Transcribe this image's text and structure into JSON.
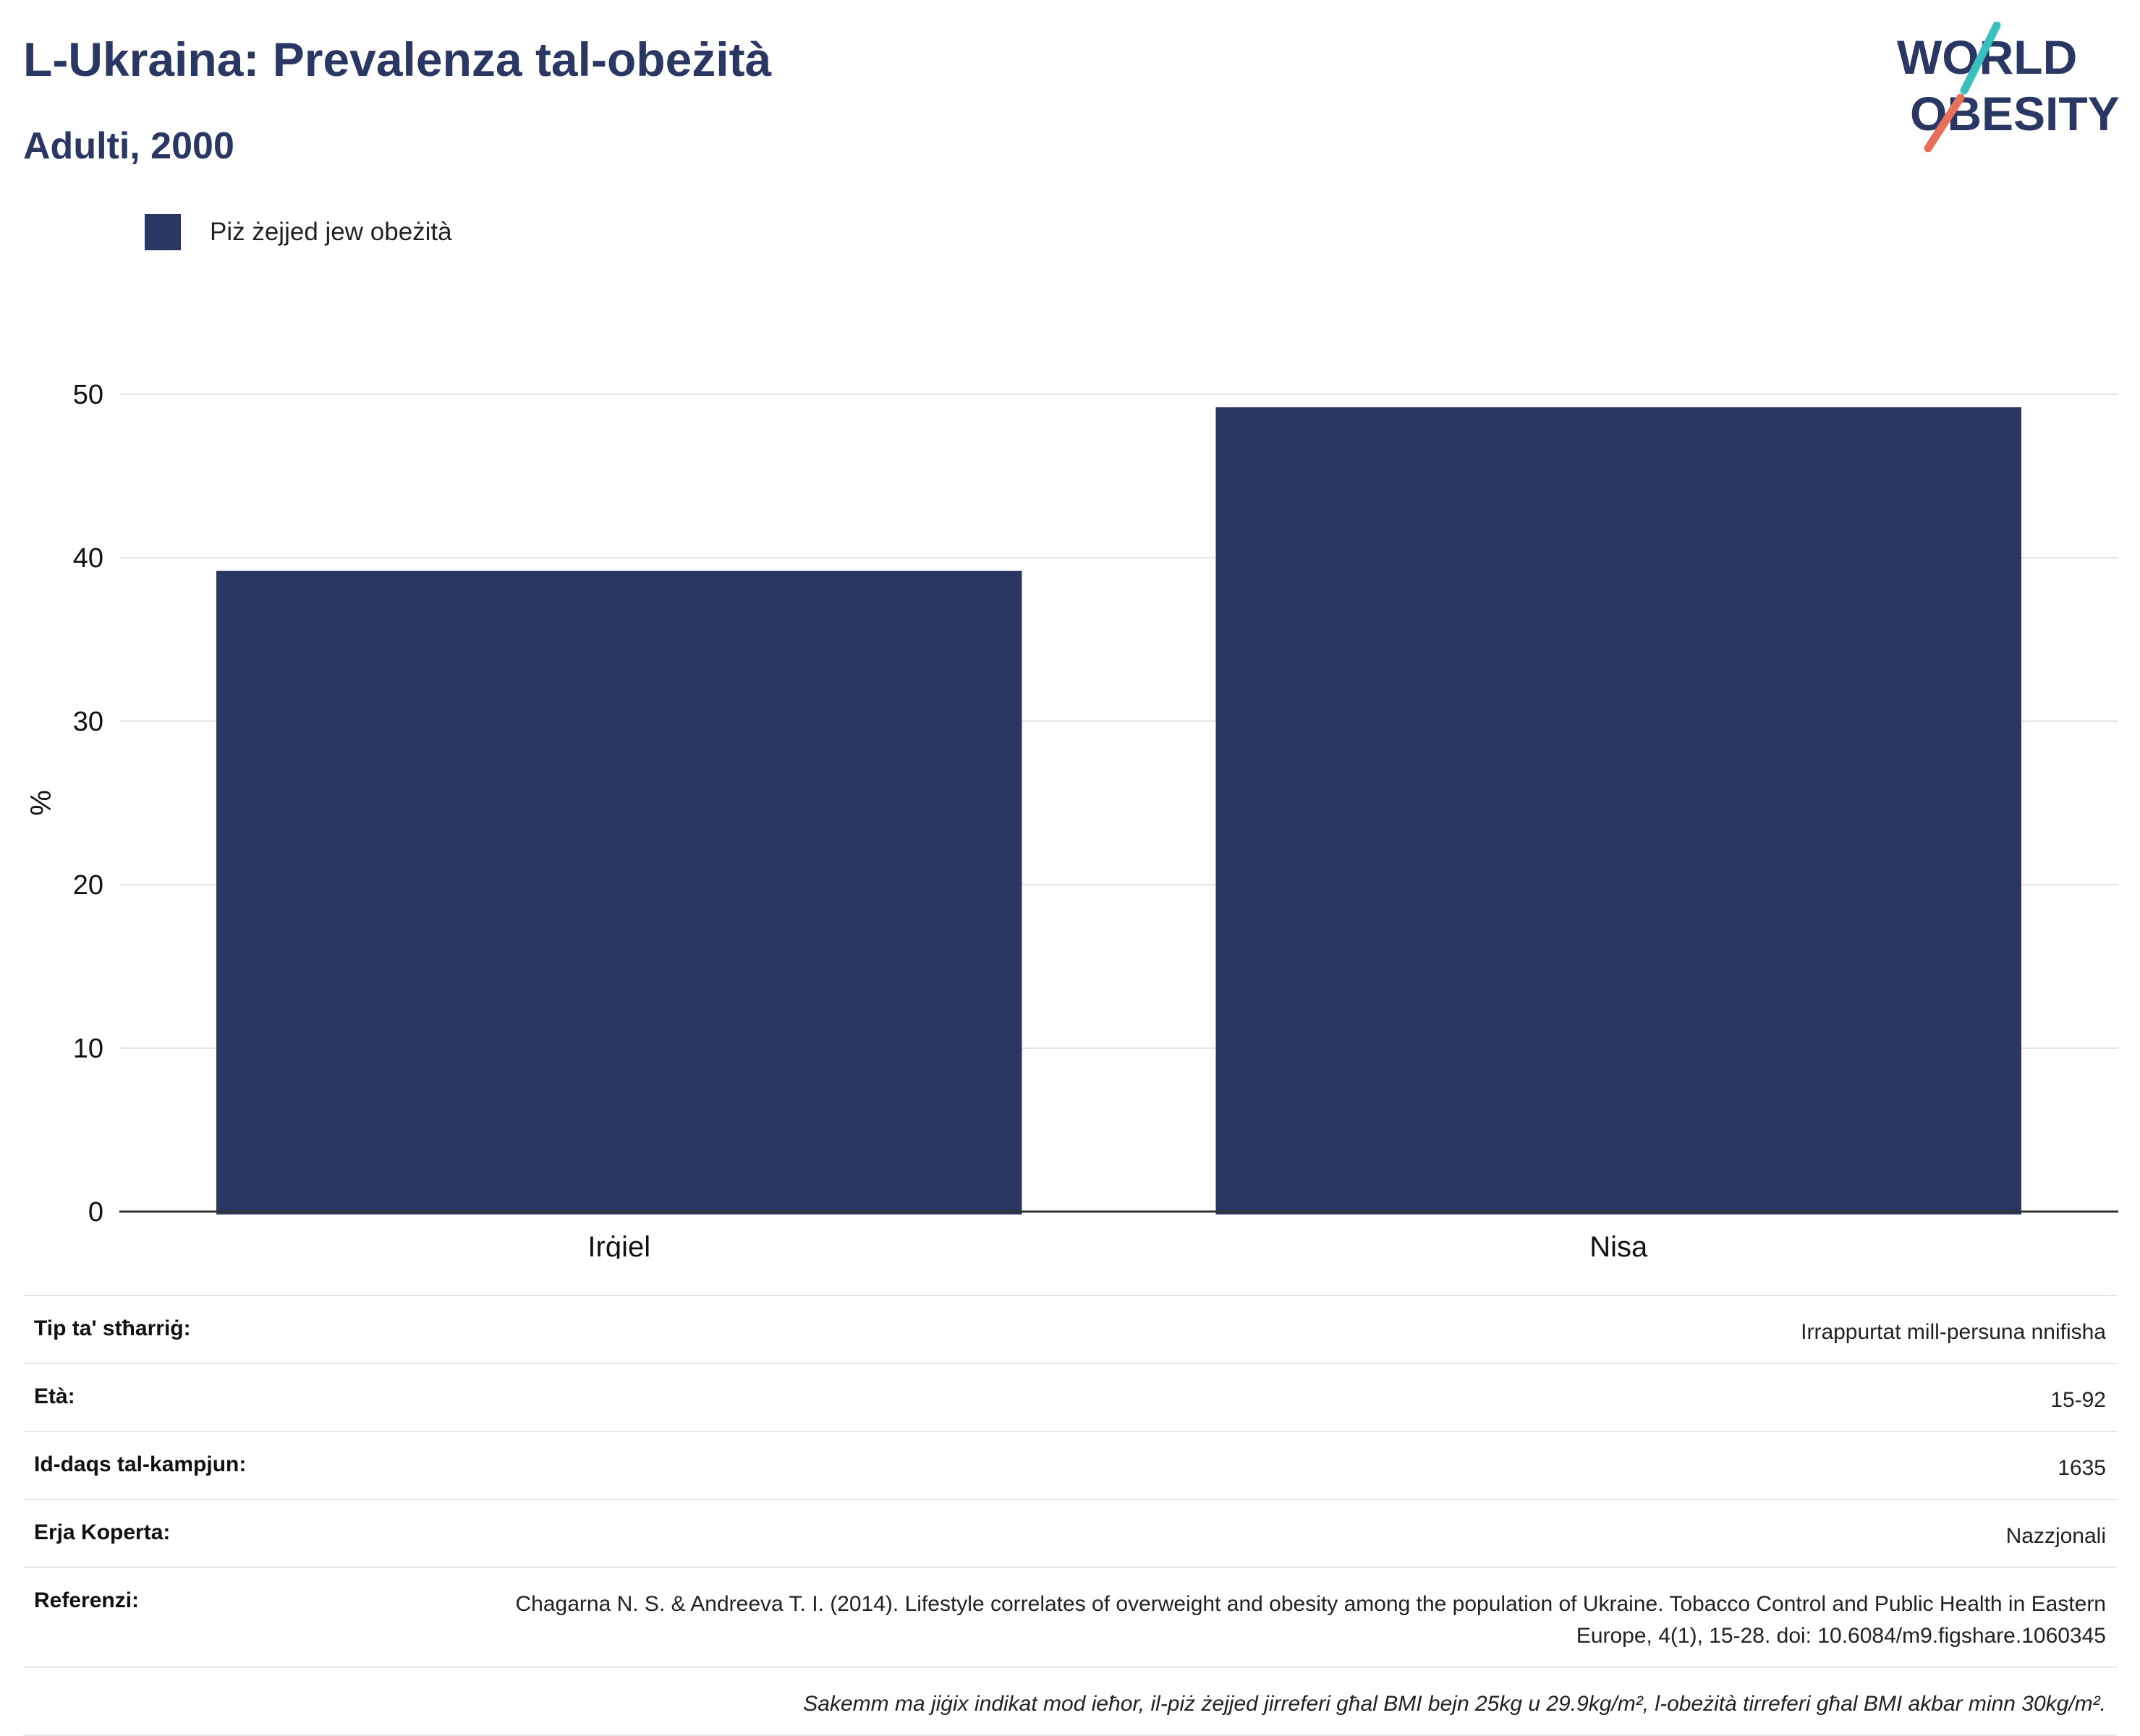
{
  "header": {
    "title": "L-Ukraina: Prevalenza tal-obeżità",
    "subtitle": "Adulti, 2000"
  },
  "logo": {
    "line1": "WORLD",
    "line2": "OBESITY",
    "text_color": "#2b3763",
    "accent_teal": "#3bbfbf",
    "accent_coral": "#e8705a"
  },
  "chart_data": {
    "type": "bar",
    "categories": [
      "Irġiel",
      "Nisa"
    ],
    "series": [
      {
        "name": "Piż żejjed jew obeżità",
        "values": [
          39.2,
          49.2
        ],
        "color": "#2b3763"
      }
    ],
    "ylabel": "%",
    "ylim": [
      0,
      50
    ],
    "yticks": [
      0,
      10,
      20,
      30,
      40,
      50
    ],
    "grid": true,
    "legend_position": "top-left"
  },
  "info": {
    "rows": [
      {
        "key": "Tip ta' stħarriġ:",
        "value": "Irrappurtat mill-persuna nnifisha"
      },
      {
        "key": "Età:",
        "value": "15-92"
      },
      {
        "key": "Id-daqs tal-kampjun:",
        "value": "1635"
      },
      {
        "key": "Erja Koperta:",
        "value": "Nazzjonali"
      },
      {
        "key": "Referenzi:",
        "value": "Chagarna N. S. & Andreeva T. I. (2014). Lifestyle correlates of overweight and obesity among the population of Ukraine. Tobacco Control and Public Health in Eastern Europe, 4(1), 15-28. doi: 10.6084/m9.figshare.1060345"
      }
    ],
    "note": "Sakemm ma jiġix indikat mod ieħor, il-piż żejjed jirreferi għal BMI bejn 25kg u 29.9kg/m², l-obeżità tirreferi għal BMI akbar minn 30kg/m²."
  }
}
